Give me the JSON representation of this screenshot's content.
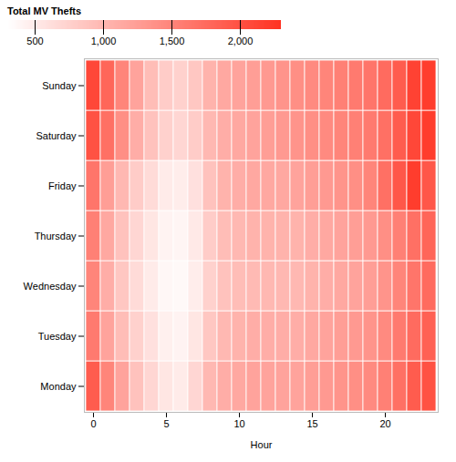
{
  "chart_data": {
    "type": "heatmap",
    "x": [
      0,
      1,
      2,
      3,
      4,
      5,
      6,
      7,
      8,
      9,
      10,
      11,
      12,
      13,
      14,
      15,
      16,
      17,
      18,
      19,
      20,
      21,
      22,
      23
    ],
    "categories": [
      "Monday",
      "Tuesday",
      "Wednesday",
      "Thursday",
      "Friday",
      "Saturday",
      "Sunday"
    ],
    "values": [
      [
        1900,
        1500,
        1200,
        900,
        700,
        550,
        500,
        700,
        1000,
        1100,
        1150,
        1200,
        1200,
        1200,
        1200,
        1250,
        1300,
        1350,
        1400,
        1450,
        1550,
        1700,
        1900,
        2000
      ],
      [
        1600,
        1200,
        950,
        750,
        600,
        450,
        420,
        550,
        850,
        1000,
        1050,
        1100,
        1100,
        1100,
        1100,
        1150,
        1200,
        1250,
        1300,
        1350,
        1450,
        1600,
        1750,
        1850
      ],
      [
        1500,
        1100,
        850,
        650,
        500,
        380,
        360,
        480,
        750,
        900,
        950,
        980,
        1000,
        1000,
        1000,
        1050,
        1100,
        1150,
        1200,
        1250,
        1350,
        1500,
        1650,
        1750
      ],
      [
        1550,
        1150,
        900,
        700,
        550,
        420,
        400,
        520,
        800,
        950,
        1000,
        1050,
        1050,
        1050,
        1050,
        1100,
        1150,
        1200,
        1250,
        1300,
        1400,
        1550,
        1700,
        1800
      ],
      [
        1650,
        1250,
        1000,
        800,
        650,
        500,
        480,
        600,
        900,
        1050,
        1100,
        1150,
        1150,
        1150,
        1200,
        1250,
        1300,
        1350,
        1400,
        1500,
        1700,
        1950,
        2200,
        1950
      ],
      [
        2000,
        1700,
        1400,
        1100,
        900,
        750,
        700,
        800,
        1000,
        1100,
        1150,
        1200,
        1250,
        1300,
        1350,
        1400,
        1450,
        1500,
        1550,
        1600,
        1700,
        1900,
        2100,
        2200
      ],
      [
        2100,
        1800,
        1500,
        1200,
        950,
        800,
        750,
        850,
        1050,
        1150,
        1200,
        1250,
        1300,
        1350,
        1400,
        1450,
        1500,
        1550,
        1600,
        1650,
        1750,
        1900,
        2150,
        2200
      ]
    ],
    "xlabel": "Hour",
    "xticks": [
      0,
      5,
      10,
      15,
      20
    ],
    "color": "#ff3322",
    "colorbar_label": "Total MV Thefts",
    "colorbar_range": [
      300,
      2300
    ],
    "colorbar_ticks": [
      500,
      1000,
      1500,
      2000
    ]
  }
}
